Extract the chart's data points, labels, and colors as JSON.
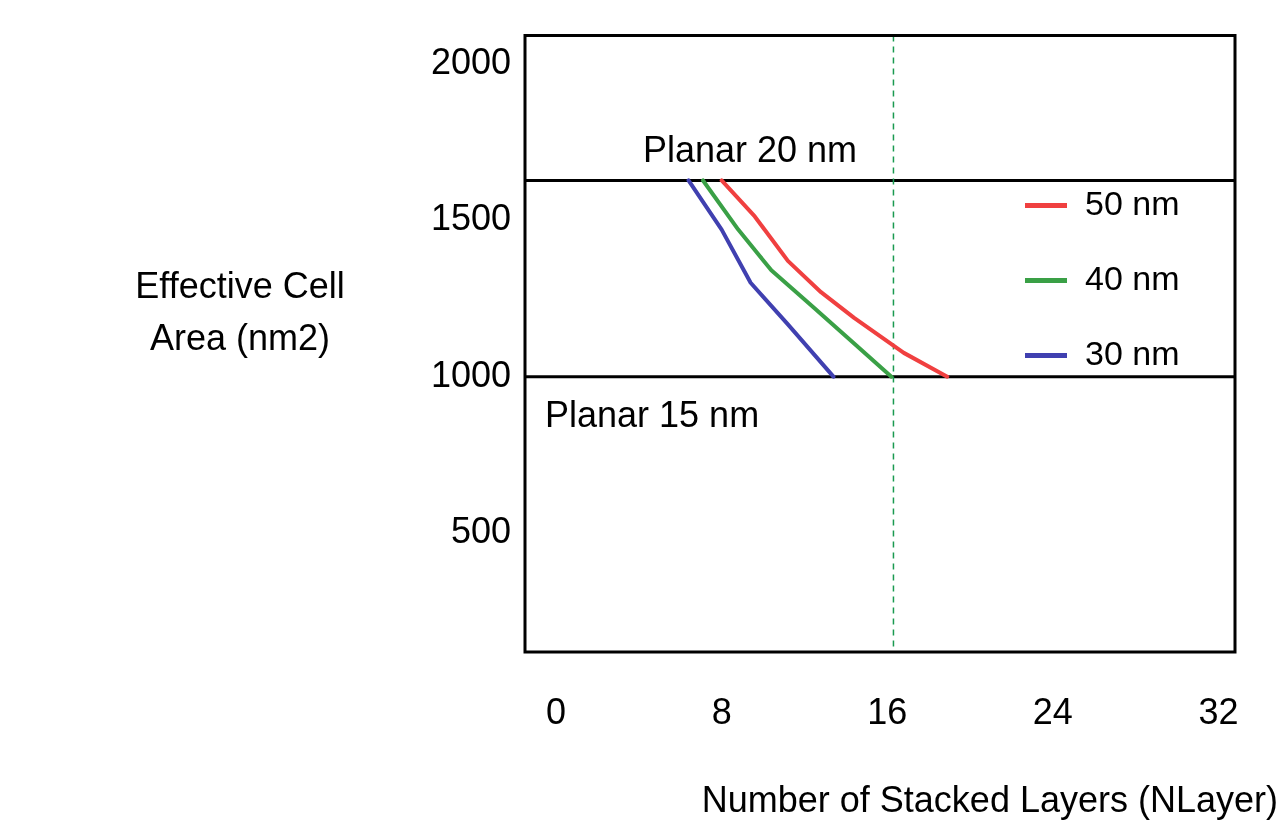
{
  "chart_data": {
    "type": "line",
    "xlabel": "Number of Stacked Layers (NLayer)",
    "ylabel": "Effective Cell Area (nm2)",
    "xlim": [
      -1.5,
      32.8
    ],
    "xticks": [
      0,
      8,
      16,
      24,
      32
    ],
    "ylim": [
      120,
      2090
    ],
    "yticks": [
      500,
      1000,
      1500,
      2000
    ],
    "grid": false,
    "legend": "right",
    "marker": "none",
    "line_style": "solid",
    "series": [
      {
        "name": "50 nm",
        "color": "#f04040",
        "x": [
          8.0,
          9.6,
          11.2,
          12.8,
          14.4,
          16.8,
          18.9
        ],
        "values": [
          1627,
          1512,
          1370,
          1270,
          1188,
          1076,
          1000
        ]
      },
      {
        "name": "40 nm",
        "color": "#3aa046",
        "x": [
          7.1,
          8.8,
          10.4,
          12.5,
          14.4,
          16.2
        ],
        "values": [
          1627,
          1470,
          1340,
          1218,
          1106,
          1000
        ]
      },
      {
        "name": "30 nm",
        "color": "#4040b0",
        "x": [
          6.4,
          8.0,
          9.4,
          11.2,
          13.4
        ],
        "values": [
          1627,
          1470,
          1300,
          1167,
          1000
        ]
      }
    ],
    "ref_lines": [
      {
        "axis": "y",
        "value": 1627,
        "label": "Planar 20 nm",
        "color": "#000000",
        "line_style": "solid"
      },
      {
        "axis": "y",
        "value": 1000,
        "label": "Planar 15 nm",
        "color": "#000000",
        "line_style": "solid"
      },
      {
        "axis": "x",
        "value": 16.3,
        "color": "#1a9a50",
        "line_style": "dashed"
      }
    ]
  }
}
